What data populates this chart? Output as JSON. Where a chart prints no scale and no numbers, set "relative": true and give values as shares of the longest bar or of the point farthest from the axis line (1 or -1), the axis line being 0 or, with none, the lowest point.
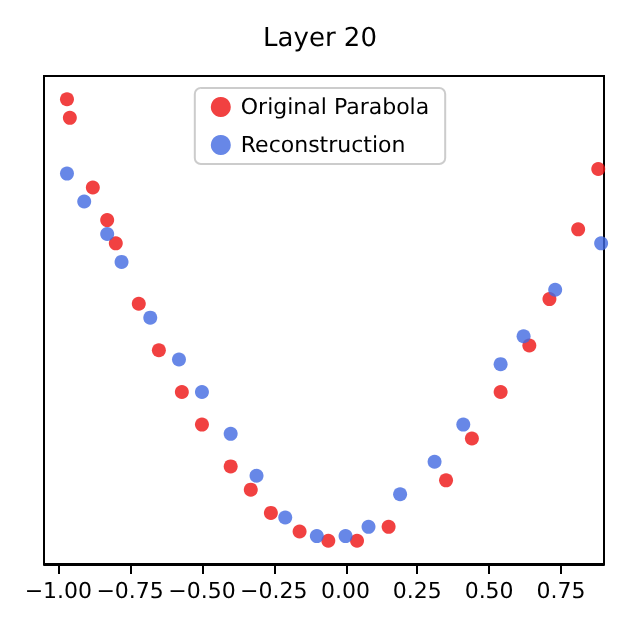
{
  "chart_data": {
    "type": "scatter",
    "title": "Layer 20",
    "relative": true,
    "marker": "circle",
    "legend": "top",
    "xlim": [
      -1.05,
      0.9
    ],
    "xticks": [
      {
        "value": -1,
        "label": "−1.00"
      },
      {
        "value": -0.75,
        "label": "−0.75"
      },
      {
        "value": -0.5,
        "label": "−0.50"
      },
      {
        "value": -0.25,
        "label": "−0.25"
      },
      {
        "value": 0,
        "label": "0.00"
      },
      {
        "value": 0.25,
        "label": "0.25"
      },
      {
        "value": 0.5,
        "label": "0.50"
      },
      {
        "value": 0.75,
        "label": "0.75"
      }
    ],
    "series": [
      {
        "name": "Original Parabola",
        "color": "#ee1111",
        "x": [
          -0.97,
          -0.96,
          -0.88,
          -0.83,
          -0.8,
          -0.72,
          -0.65,
          -0.57,
          -0.5,
          -0.4,
          -0.33,
          -0.26,
          -0.16,
          -0.06,
          0.04,
          0.15,
          0.35,
          0.44,
          0.54,
          0.64,
          0.71,
          0.81,
          0.88
        ],
        "values": [
          1.0,
          0.96,
          0.81,
          0.74,
          0.69,
          0.56,
          0.46,
          0.37,
          0.3,
          0.21,
          0.16,
          0.11,
          0.07,
          0.05,
          0.05,
          0.08,
          0.18,
          0.27,
          0.37,
          0.47,
          0.57,
          0.72,
          0.85
        ]
      },
      {
        "name": "Reconstruction",
        "color": "#4169e1",
        "x": [
          -0.97,
          -0.91,
          -0.83,
          -0.78,
          -0.68,
          -0.58,
          -0.5,
          -0.4,
          -0.31,
          -0.21,
          -0.1,
          0.0,
          0.08,
          0.19,
          0.31,
          0.41,
          0.54,
          0.62,
          0.73,
          0.89
        ],
        "values": [
          0.84,
          0.78,
          0.71,
          0.65,
          0.53,
          0.44,
          0.37,
          0.28,
          0.19,
          0.1,
          0.06,
          0.06,
          0.08,
          0.15,
          0.22,
          0.3,
          0.43,
          0.49,
          0.59,
          0.69
        ]
      }
    ]
  }
}
